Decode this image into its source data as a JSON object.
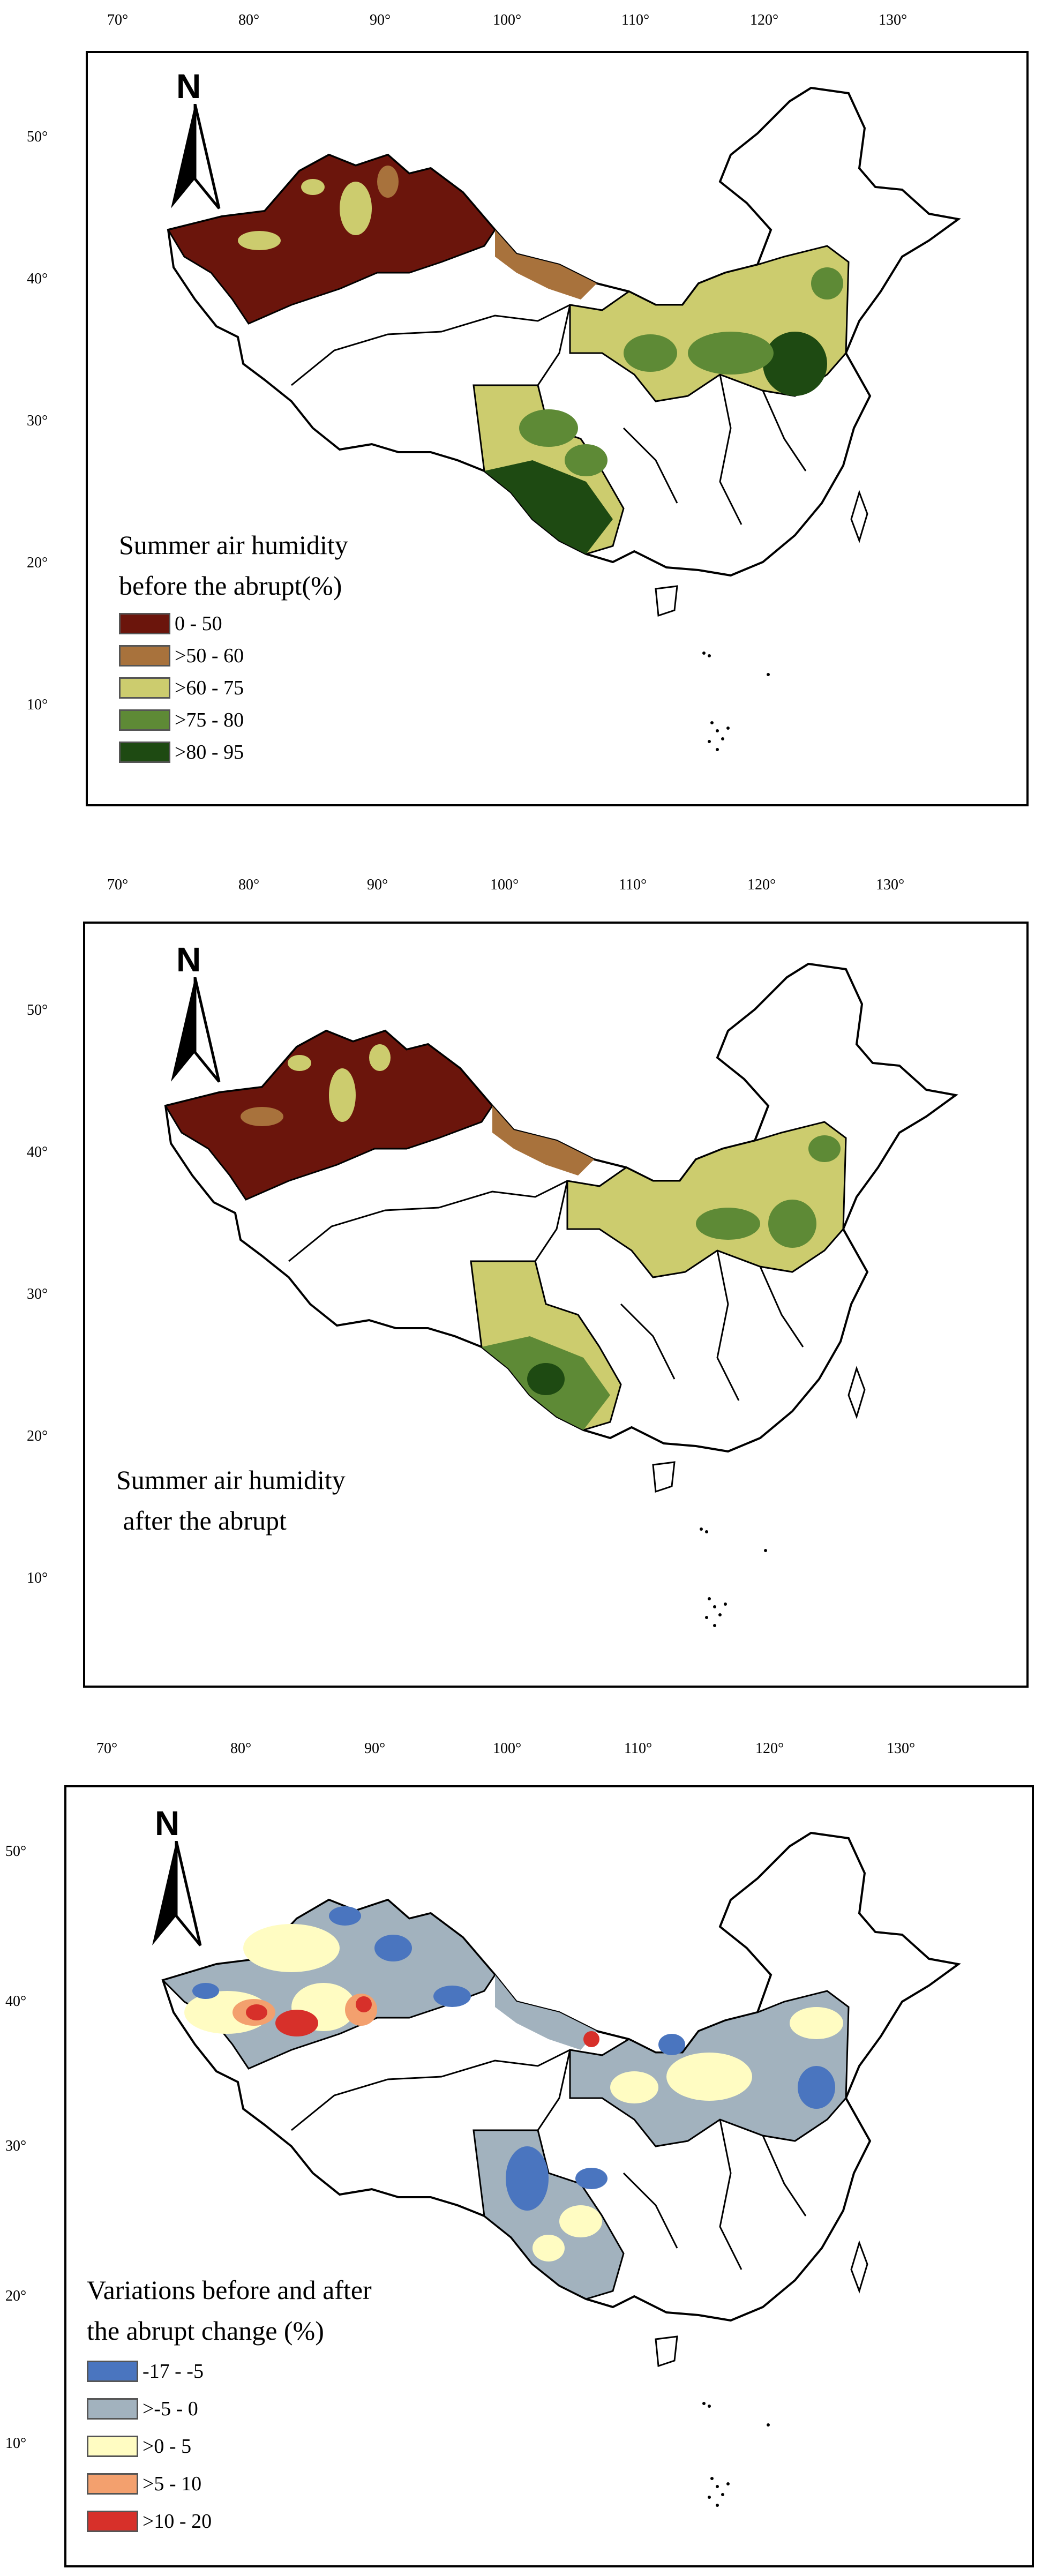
{
  "panels": [
    {
      "id": "before",
      "lon_ticks": [
        "70°",
        "80°",
        "90°",
        "100°",
        "110°",
        "120°",
        "130°"
      ],
      "lat_ticks": [
        "50°",
        "40°",
        "30°",
        "20°",
        "10°"
      ],
      "north_label": "N",
      "legend_title": "Summer air humidity\nbefore the abrupt(%)",
      "legend": [
        {
          "label": "0 - 50",
          "color": "#6B150C"
        },
        {
          "label": ">50 - 60",
          "color": "#A8723C"
        },
        {
          "label": ">60 - 75",
          "color": "#CCCC6E"
        },
        {
          "label": ">75 - 80",
          "color": "#5E8A36"
        },
        {
          "label": ">80 - 95",
          "color": "#1E4A12"
        }
      ]
    },
    {
      "id": "after",
      "lon_ticks": [
        "70°",
        "80°",
        "90°",
        "100°",
        "110°",
        "120°",
        "130°"
      ],
      "lat_ticks": [
        "50°",
        "40°",
        "30°",
        "20°",
        "10°"
      ],
      "north_label": "N",
      "legend_title": "Summer air humidity\n after the abrupt",
      "legend": []
    },
    {
      "id": "variation",
      "lon_ticks": [
        "70°",
        "80°",
        "90°",
        "100°",
        "110°",
        "120°",
        "130°"
      ],
      "lat_ticks": [
        "50°",
        "40°",
        "30°",
        "20°",
        "10°"
      ],
      "north_label": "N",
      "legend_title": "Variations before and after\nthe abrupt change (%)",
      "legend": [
        {
          "label": "-17 - -5",
          "color": "#4A75BF"
        },
        {
          "label": ">-5 - 0",
          "color": "#A2B2BE"
        },
        {
          "label": ">0 - 5",
          "color": "#FFFCC2"
        },
        {
          "label": ">5 - 10",
          "color": "#F3A06E"
        },
        {
          "label": ">10 - 20",
          "color": "#D7302A"
        }
      ]
    }
  ]
}
